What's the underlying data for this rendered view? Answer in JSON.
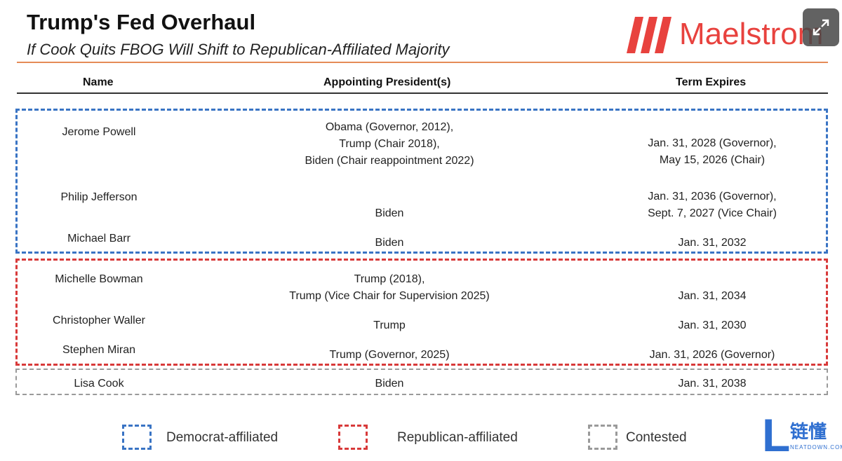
{
  "header": {
    "title": "Trump's Fed Overhaul",
    "subtitle": "If Cook Quits FBOG Will Shift to Republican-Affiliated Majority",
    "logo_text": "Maelstrom"
  },
  "table": {
    "columns": [
      "Name",
      "Appointing President(s)",
      "Term Expires"
    ],
    "rows": [
      {
        "name": "Jerome Powell",
        "appointing": [
          "Obama (Governor, 2012),",
          "Trump (Chair 2018),",
          "Biden (Chair reappointment 2022)"
        ],
        "term": [
          "Jan. 31, 2028 (Governor),",
          "May 15, 2026 (Chair)"
        ],
        "group": "democrat"
      },
      {
        "name": "Philip Jefferson",
        "appointing": [
          "Biden"
        ],
        "term": [
          "Jan. 31, 2036 (Governor),",
          "Sept. 7, 2027 (Vice Chair)"
        ],
        "group": "democrat"
      },
      {
        "name": "Michael Barr",
        "appointing": [
          "Biden"
        ],
        "term": [
          "Jan. 31, 2032"
        ],
        "group": "democrat"
      },
      {
        "name": "Michelle Bowman",
        "appointing": [
          "Trump (2018),",
          "Trump (Vice Chair for Supervision 2025)"
        ],
        "term": [
          "Jan. 31, 2034"
        ],
        "group": "republican"
      },
      {
        "name": "Christopher Waller",
        "appointing": [
          "Trump"
        ],
        "term": [
          "Jan. 31, 2030"
        ],
        "group": "republican"
      },
      {
        "name": "Stephen Miran",
        "appointing": [
          "Trump (Governor, 2025)"
        ],
        "term": [
          "Jan. 31, 2026 (Governor)"
        ],
        "group": "republican"
      },
      {
        "name": "Lisa Cook",
        "appointing": [
          "Biden"
        ],
        "term": [
          "Jan. 31, 2038"
        ],
        "group": "contested"
      }
    ]
  },
  "legend": [
    {
      "label": "Democrat-affiliated",
      "color": "#3a74c4"
    },
    {
      "label": "Republican-affiliated",
      "color": "#d83a3a"
    },
    {
      "label": "Contested",
      "color": "#9a9a9a"
    }
  ],
  "watermark": {
    "glyph": "L",
    "text": "链懂",
    "sub": "NEATDOWN.COM"
  },
  "colors": {
    "accent_orange": "#e58b57",
    "brand_red": "#e8423e"
  }
}
